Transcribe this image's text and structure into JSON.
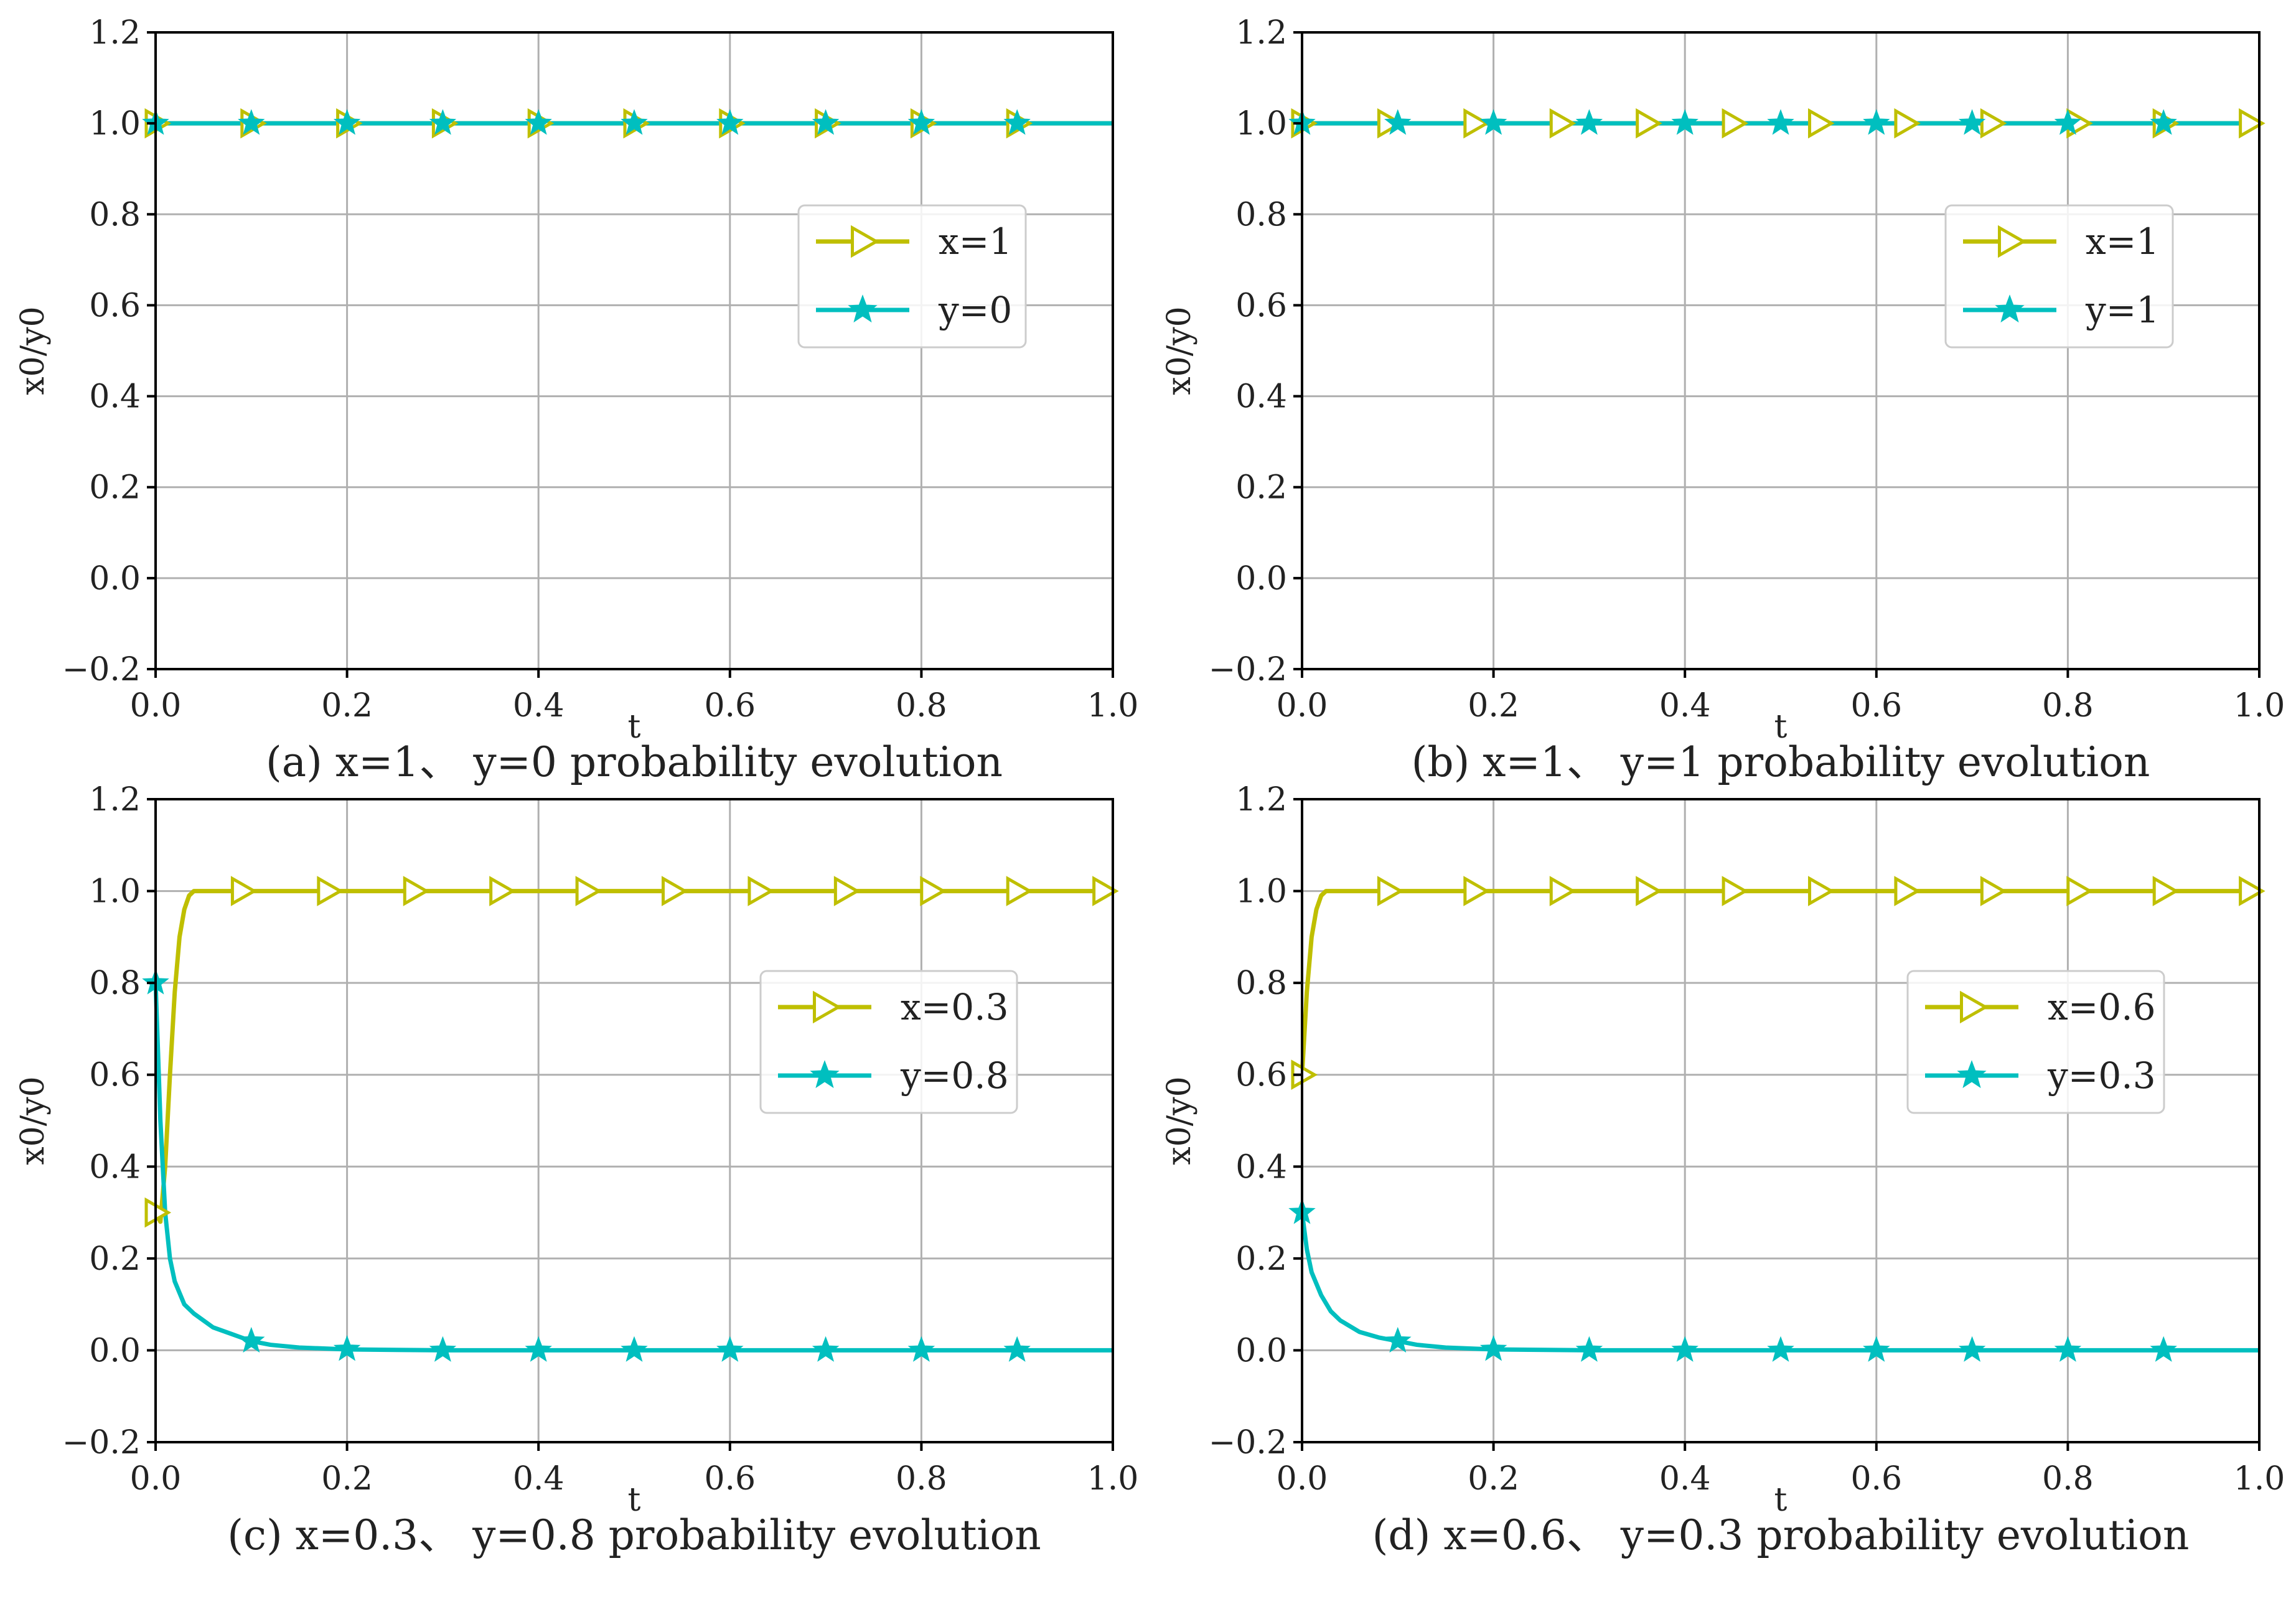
{
  "colors": {
    "x_series": "#BFBF00",
    "y_series": "#00BFBF",
    "grid": "#B0B0B0",
    "axis": "#000000"
  },
  "chart_data": [
    {
      "type": "line",
      "caption": "(a) x=1、 y=0 probability evolution",
      "xlabel": "t",
      "ylabel": "x0/y0",
      "xlim": [
        0.0,
        1.0
      ],
      "ylim": [
        -0.2,
        1.2
      ],
      "xticks": [
        "0.0",
        "0.2",
        "0.4",
        "0.6",
        "0.8",
        "1.0"
      ],
      "yticks": [
        "−0.2",
        "0.0",
        "0.2",
        "0.4",
        "0.6",
        "0.8",
        "1.0",
        "1.2"
      ],
      "ytick_values": [
        -0.2,
        0.0,
        0.2,
        0.4,
        0.6,
        0.8,
        1.0,
        1.2
      ],
      "grid": true,
      "legend_position": "center-right",
      "series": [
        {
          "name": "x=1",
          "marker": "triangle-right",
          "x": [
            0.0,
            0.05,
            0.1,
            0.2,
            0.3,
            0.4,
            0.5,
            0.6,
            0.7,
            0.8,
            0.9,
            1.0
          ],
          "y": [
            1.0,
            1.0,
            1.0,
            1.0,
            1.0,
            1.0,
            1.0,
            1.0,
            1.0,
            1.0,
            1.0,
            1.0
          ],
          "marker_x": [
            0.0,
            0.1,
            0.2,
            0.3,
            0.4,
            0.5,
            0.6,
            0.7,
            0.8,
            0.9
          ]
        },
        {
          "name": "y=0",
          "marker": "star",
          "x": [
            0.0,
            0.05,
            0.1,
            0.2,
            0.3,
            0.4,
            0.5,
            0.6,
            0.7,
            0.8,
            0.9,
            1.0
          ],
          "y": [
            1.0,
            1.0,
            1.0,
            1.0,
            1.0,
            1.0,
            1.0,
            1.0,
            1.0,
            1.0,
            1.0,
            1.0
          ],
          "marker_x": [
            0.0,
            0.1,
            0.2,
            0.3,
            0.4,
            0.5,
            0.6,
            0.7,
            0.8,
            0.9
          ]
        }
      ]
    },
    {
      "type": "line",
      "caption": "(b) x=1、 y=1 probability evolution",
      "xlabel": "t",
      "ylabel": "x0/y0",
      "xlim": [
        0.0,
        1.0
      ],
      "ylim": [
        -0.2,
        1.2
      ],
      "xticks": [
        "0.0",
        "0.2",
        "0.4",
        "0.6",
        "0.8",
        "1.0"
      ],
      "yticks": [
        "−0.2",
        "0.0",
        "0.2",
        "0.4",
        "0.6",
        "0.8",
        "1.0",
        "1.2"
      ],
      "ytick_values": [
        -0.2,
        0.0,
        0.2,
        0.4,
        0.6,
        0.8,
        1.0,
        1.2
      ],
      "grid": true,
      "legend_position": "center-right",
      "series": [
        {
          "name": "x=1",
          "marker": "triangle-right",
          "x": [
            0.0,
            0.05,
            0.1,
            0.2,
            0.3,
            0.4,
            0.5,
            0.6,
            0.7,
            0.8,
            0.9,
            1.0
          ],
          "y": [
            1.0,
            1.0,
            1.0,
            1.0,
            1.0,
            1.0,
            1.0,
            1.0,
            1.0,
            1.0,
            1.0,
            1.0
          ],
          "marker_x": [
            0.0,
            0.09,
            0.18,
            0.27,
            0.36,
            0.45,
            0.54,
            0.63,
            0.72,
            0.81,
            0.9,
            0.99
          ]
        },
        {
          "name": "y=1",
          "marker": "star",
          "x": [
            0.0,
            0.05,
            0.1,
            0.2,
            0.3,
            0.4,
            0.5,
            0.6,
            0.7,
            0.8,
            0.9,
            1.0
          ],
          "y": [
            1.0,
            1.0,
            1.0,
            1.0,
            1.0,
            1.0,
            1.0,
            1.0,
            1.0,
            1.0,
            1.0,
            1.0
          ],
          "marker_x": [
            0.0,
            0.1,
            0.2,
            0.3,
            0.4,
            0.5,
            0.6,
            0.7,
            0.8,
            0.9
          ]
        }
      ]
    },
    {
      "type": "line",
      "caption": "(c) x=0.3、 y=0.8 probability evolution",
      "xlabel": "t",
      "ylabel": "x0/y0",
      "xlim": [
        0.0,
        1.0
      ],
      "ylim": [
        -0.2,
        1.2
      ],
      "xticks": [
        "0.0",
        "0.2",
        "0.4",
        "0.6",
        "0.8",
        "1.0"
      ],
      "yticks": [
        "−0.2",
        "0.0",
        "0.2",
        "0.4",
        "0.6",
        "0.8",
        "1.0",
        "1.2"
      ],
      "ytick_values": [
        -0.2,
        0.0,
        0.2,
        0.4,
        0.6,
        0.8,
        1.0,
        1.2
      ],
      "grid": true,
      "legend_position": "center-right",
      "series": [
        {
          "name": "x=0.3",
          "marker": "triangle-right",
          "x": [
            0.0,
            0.005,
            0.01,
            0.015,
            0.02,
            0.025,
            0.03,
            0.035,
            0.04,
            0.05,
            0.1,
            0.2,
            0.3,
            0.4,
            0.5,
            0.6,
            0.7,
            0.8,
            0.9,
            1.0
          ],
          "y": [
            0.3,
            0.28,
            0.4,
            0.6,
            0.78,
            0.9,
            0.96,
            0.99,
            1.0,
            1.0,
            1.0,
            1.0,
            1.0,
            1.0,
            1.0,
            1.0,
            1.0,
            1.0,
            1.0,
            1.0
          ],
          "marker_x": [
            0.0,
            0.09,
            0.18,
            0.27,
            0.36,
            0.45,
            0.54,
            0.63,
            0.72,
            0.81,
            0.9,
            0.99
          ]
        },
        {
          "name": "y=0.8",
          "marker": "star",
          "x": [
            0.0,
            0.005,
            0.01,
            0.015,
            0.02,
            0.03,
            0.04,
            0.06,
            0.08,
            0.1,
            0.12,
            0.15,
            0.2,
            0.3,
            0.4,
            0.5,
            0.6,
            0.7,
            0.8,
            0.9,
            1.0
          ],
          "y": [
            0.8,
            0.5,
            0.3,
            0.2,
            0.15,
            0.1,
            0.08,
            0.05,
            0.035,
            0.02,
            0.012,
            0.006,
            0.002,
            0.0,
            0.0,
            0.0,
            0.0,
            0.0,
            0.0,
            0.0,
            0.0
          ],
          "marker_x": [
            0.0,
            0.1,
            0.2,
            0.3,
            0.4,
            0.5,
            0.6,
            0.7,
            0.8,
            0.9
          ]
        }
      ]
    },
    {
      "type": "line",
      "caption": "(d) x=0.6、 y=0.3 probability evolution",
      "xlabel": "t",
      "ylabel": "x0/y0",
      "xlim": [
        0.0,
        1.0
      ],
      "ylim": [
        -0.2,
        1.2
      ],
      "xticks": [
        "0.0",
        "0.2",
        "0.4",
        "0.6",
        "0.8",
        "1.0"
      ],
      "yticks": [
        "−0.2",
        "0.0",
        "0.2",
        "0.4",
        "0.6",
        "0.8",
        "1.0",
        "1.2"
      ],
      "ytick_values": [
        -0.2,
        0.0,
        0.2,
        0.4,
        0.6,
        0.8,
        1.0,
        1.2
      ],
      "grid": true,
      "legend_position": "center-right",
      "series": [
        {
          "name": "x=0.6",
          "marker": "triangle-right",
          "x": [
            0.0,
            0.005,
            0.01,
            0.015,
            0.02,
            0.025,
            0.03,
            0.05,
            0.1,
            0.2,
            0.3,
            0.4,
            0.5,
            0.6,
            0.7,
            0.8,
            0.9,
            1.0
          ],
          "y": [
            0.6,
            0.78,
            0.9,
            0.96,
            0.99,
            1.0,
            1.0,
            1.0,
            1.0,
            1.0,
            1.0,
            1.0,
            1.0,
            1.0,
            1.0,
            1.0,
            1.0,
            1.0
          ],
          "marker_x": [
            0.0,
            0.09,
            0.18,
            0.27,
            0.36,
            0.45,
            0.54,
            0.63,
            0.72,
            0.81,
            0.9,
            0.99
          ]
        },
        {
          "name": "y=0.3",
          "marker": "star",
          "x": [
            0.0,
            0.005,
            0.01,
            0.02,
            0.03,
            0.04,
            0.06,
            0.08,
            0.1,
            0.12,
            0.15,
            0.2,
            0.3,
            0.4,
            0.5,
            0.6,
            0.7,
            0.8,
            0.9,
            1.0
          ],
          "y": [
            0.3,
            0.22,
            0.17,
            0.12,
            0.085,
            0.065,
            0.04,
            0.028,
            0.02,
            0.012,
            0.006,
            0.002,
            0.0,
            0.0,
            0.0,
            0.0,
            0.0,
            0.0,
            0.0,
            0.0
          ],
          "marker_x": [
            0.0,
            0.1,
            0.2,
            0.3,
            0.4,
            0.5,
            0.6,
            0.7,
            0.8,
            0.9
          ]
        }
      ]
    }
  ]
}
